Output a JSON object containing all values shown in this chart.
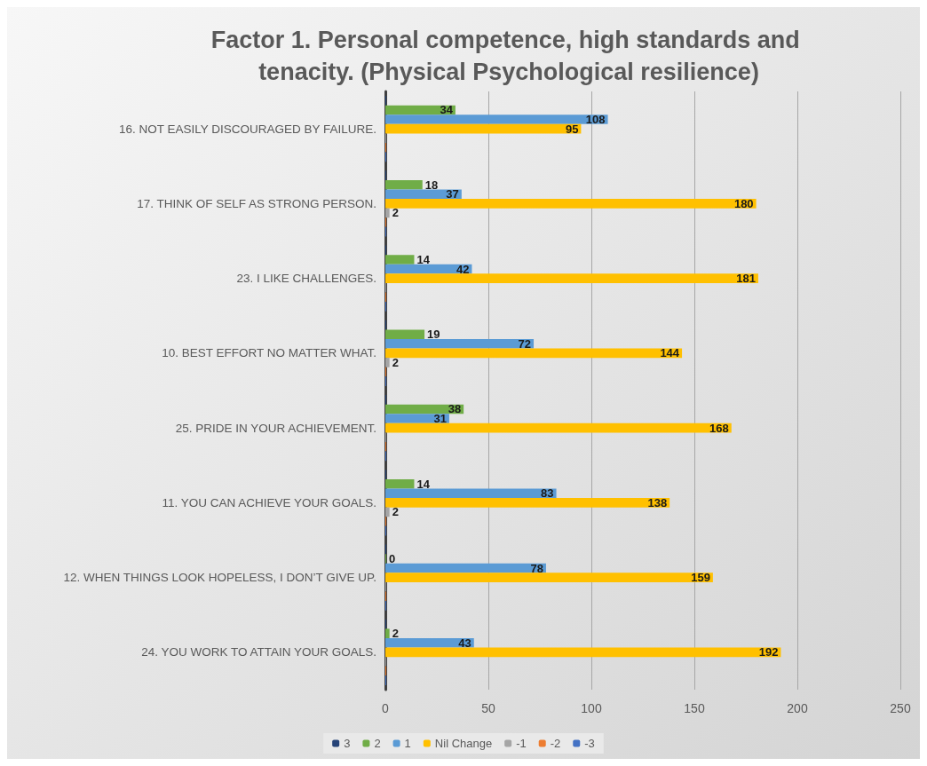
{
  "chart_data": {
    "type": "bar",
    "orientation": "horizontal",
    "title": "Factor 1. Personal competence, high standards and tenacity. (Physical Psychological resilience)",
    "categories": [
      "16. NOT EASILY DISCOURAGED BY FAILURE.",
      "17. THINK OF SELF AS STRONG PERSON.",
      "23. I LIKE CHALLENGES.",
      "10. BEST EFFORT NO MATTER WHAT.",
      "25. PRIDE IN YOUR ACHIEVEMENT.",
      "11. YOU CAN ACHIEVE YOUR GOALS.",
      "12. WHEN THINGS LOOK HOPELESS, I DON’T GIVE UP.",
      "24. YOU WORK TO ATTAIN YOUR GOALS."
    ],
    "series": [
      {
        "name": "3",
        "color": "#264478",
        "values": [
          0,
          0,
          0,
          0,
          0,
          0,
          0,
          0
        ],
        "value_labels": [
          null,
          null,
          null,
          null,
          null,
          null,
          null,
          null
        ]
      },
      {
        "name": "2",
        "color": "#70ad47",
        "values": [
          34,
          18,
          14,
          19,
          38,
          14,
          0,
          2
        ],
        "value_labels": [
          "34",
          "18",
          "14",
          "19",
          "38",
          "14",
          "0",
          "2"
        ]
      },
      {
        "name": "1",
        "color": "#5b9bd5",
        "values": [
          108,
          37,
          42,
          72,
          31,
          83,
          78,
          43
        ],
        "value_labels": [
          "108",
          "37",
          "42",
          "72",
          "31",
          "83",
          "78",
          "43"
        ]
      },
      {
        "name": "Nil Change",
        "color": "#ffc000",
        "values": [
          95,
          180,
          181,
          144,
          168,
          138,
          159,
          192
        ],
        "value_labels": [
          "95",
          "180",
          "181",
          "144",
          "168",
          "138",
          "159",
          "192"
        ]
      },
      {
        "name": "-1",
        "color": "#a5a5a5",
        "values": [
          0,
          2,
          0,
          2,
          0,
          2,
          0,
          0
        ],
        "value_labels": [
          null,
          "2",
          null,
          "2",
          null,
          "2",
          null,
          null
        ]
      },
      {
        "name": "-2",
        "color": "#ed7d31",
        "values": [
          0,
          0,
          0,
          0,
          0,
          0,
          0,
          0
        ],
        "value_labels": [
          null,
          null,
          null,
          null,
          null,
          null,
          null,
          null
        ]
      },
      {
        "name": "-3",
        "color": "#4472c4",
        "values": [
          0,
          0,
          0,
          0,
          0,
          0,
          0,
          0
        ],
        "value_labels": [
          null,
          null,
          null,
          null,
          null,
          null,
          null,
          null
        ]
      }
    ],
    "xlim": [
      0,
      250
    ],
    "xticks": [
      0,
      50,
      100,
      150,
      200,
      250
    ],
    "grid": "x",
    "legend": "bottom"
  }
}
